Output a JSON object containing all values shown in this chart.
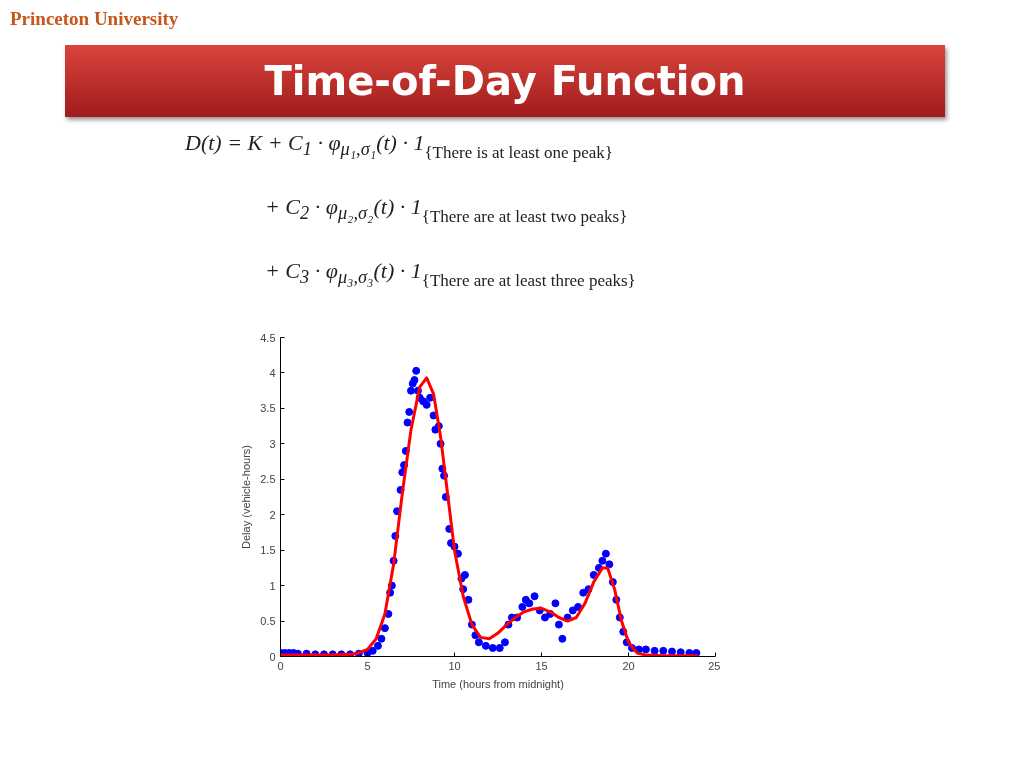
{
  "chart_data": {
    "type": "line",
    "title": "Time-of-Day Function",
    "annotations": [
      "Princeton University",
      "D(t) = K + C$_{1}$ · φ$_{μ₁,σ₁}$(t) · 1",
      "{There is at least one peak}",
      "+ C$_{2}$ · φ$_{μ₂,σ₂}$(t) · 1",
      "{There are at least two peaks}",
      "+ C$_{3}$ · φ$_{μ₃,σ₃}$(t) · 1",
      "{There are at least three peaks}"
    ],
    "xlabel": "Time (hours from midnight)",
    "ylabel": "Delay (vehicle-hours)",
    "xlim": [
      0,
      25
    ],
    "ylim": [
      0,
      4.5
    ],
    "xticks": [
      0,
      5,
      10,
      15,
      20,
      25
    ],
    "yticks": [
      0,
      0.5,
      1,
      1.5,
      2,
      2.5,
      3,
      3.5,
      4,
      4.5
    ],
    "grid": false,
    "series": [
      {
        "type": "scatter",
        "marker": "circle",
        "color": "#0000ff",
        "x": [
          0,
          0.25,
          0.5,
          0.75,
          1,
          1.5,
          2,
          2.5,
          3,
          3.5,
          4,
          4.5,
          5,
          5.3,
          5.6,
          5.8,
          6.0,
          6.2,
          6.3,
          6.4,
          6.5,
          6.6,
          6.7,
          6.9,
          7.0,
          7.1,
          7.2,
          7.3,
          7.4,
          7.5,
          7.6,
          7.7,
          7.8,
          7.9,
          8.0,
          8.2,
          8.4,
          8.6,
          8.8,
          8.9,
          9.1,
          9.2,
          9.3,
          9.4,
          9.5,
          9.7,
          9.8,
          10.0,
          10.2,
          10.4,
          10.5,
          10.6,
          10.8,
          11.0,
          11.2,
          11.4,
          11.8,
          12.2,
          12.6,
          12.9,
          13.1,
          13.3,
          13.6,
          13.9,
          14.1,
          14.3,
          14.6,
          14.9,
          15.2,
          15.5,
          15.8,
          16.0,
          16.2,
          16.5,
          16.8,
          17.1,
          17.4,
          17.7,
          18.0,
          18.3,
          18.5,
          18.7,
          18.9,
          19.1,
          19.3,
          19.5,
          19.7,
          19.9,
          20.2,
          20.6,
          21,
          21.5,
          22,
          22.5,
          23,
          23.5,
          23.9
        ],
        "values": [
          0.05,
          0.05,
          0.05,
          0.05,
          0.04,
          0.04,
          0.03,
          0.03,
          0.03,
          0.03,
          0.03,
          0.04,
          0.05,
          0.08,
          0.15,
          0.25,
          0.4,
          0.6,
          0.9,
          1.0,
          1.35,
          1.7,
          2.05,
          2.35,
          2.6,
          2.7,
          2.9,
          3.3,
          3.45,
          3.75,
          3.85,
          3.9,
          4.03,
          3.75,
          3.65,
          3.6,
          3.55,
          3.65,
          3.4,
          3.2,
          3.25,
          3.0,
          2.65,
          2.55,
          2.25,
          1.8,
          1.6,
          1.55,
          1.45,
          1.1,
          0.95,
          1.15,
          0.8,
          0.45,
          0.3,
          0.2,
          0.15,
          0.12,
          0.12,
          0.2,
          0.45,
          0.55,
          0.55,
          0.7,
          0.8,
          0.75,
          0.85,
          0.65,
          0.55,
          0.6,
          0.75,
          0.45,
          0.25,
          0.55,
          0.65,
          0.7,
          0.9,
          0.95,
          1.15,
          1.25,
          1.35,
          1.45,
          1.3,
          1.05,
          0.8,
          0.55,
          0.35,
          0.2,
          0.12,
          0.1,
          0.1,
          0.08,
          0.08,
          0.07,
          0.06,
          0.05,
          0.05
        ]
      },
      {
        "color": "#ff0000",
        "x": [
          0,
          1,
          2,
          3,
          4,
          4.5,
          5,
          5.5,
          6,
          6.5,
          7,
          7.5,
          8,
          8.4,
          8.8,
          9.2,
          9.6,
          10,
          10.5,
          11,
          11.5,
          12,
          12.5,
          13,
          13.5,
          14,
          14.5,
          15,
          15.5,
          16,
          16.5,
          17,
          17.5,
          18,
          18.5,
          18.8,
          19.2,
          19.6,
          20,
          20.5,
          21,
          22,
          23,
          24
        ],
        "values": [
          0.02,
          0.02,
          0.02,
          0.02,
          0.03,
          0.05,
          0.1,
          0.25,
          0.6,
          1.3,
          2.3,
          3.2,
          3.8,
          3.93,
          3.7,
          3.1,
          2.3,
          1.5,
          0.85,
          0.45,
          0.27,
          0.25,
          0.33,
          0.45,
          0.55,
          0.63,
          0.67,
          0.68,
          0.63,
          0.55,
          0.5,
          0.55,
          0.75,
          1.05,
          1.25,
          1.25,
          0.95,
          0.5,
          0.2,
          0.05,
          0.02,
          0.01,
          0.01,
          0.01
        ]
      }
    ]
  }
}
